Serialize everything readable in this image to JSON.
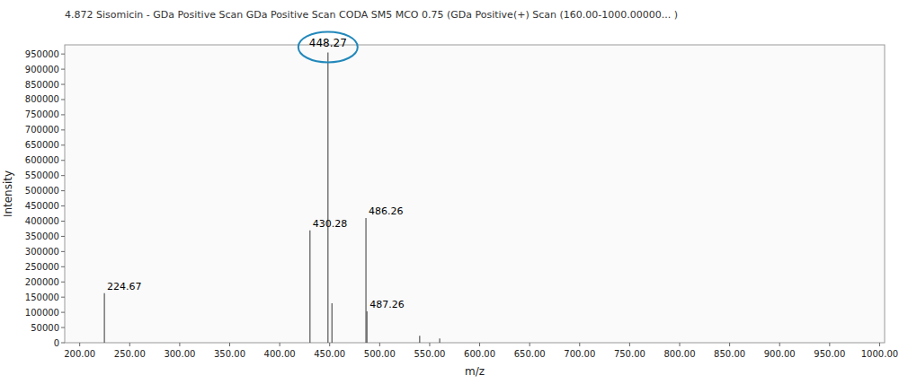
{
  "chart_data": {
    "type": "stem",
    "title": "4.872 Sisomicin - GDa Positive Scan GDa Positive Scan CODA SM5 MCO 0.75 (GDa Positive(+) Scan (160.00-1000.00000...  )",
    "x_label": "m/z",
    "y_label": "Intensity",
    "x": [
      224.67,
      430.28,
      448.27,
      452.27,
      486.26,
      487.26,
      540.0,
      560.0
    ],
    "values": [
      163000,
      370000,
      955000,
      130000,
      410000,
      103000,
      23000,
      14000
    ],
    "color": "#555555",
    "annotations": [
      {
        "text": "224.67",
        "x": 224.67,
        "y": 163000
      },
      {
        "text": "430.28",
        "x": 430.28,
        "y": 370000
      },
      {
        "text": "448.27",
        "x": 448.27,
        "y": 955000,
        "color": "#2288BB"
      },
      {
        "text": "486.26",
        "x": 486.26,
        "y": 410000
      },
      {
        "text": "487.26",
        "x": 487.26,
        "y": 103000
      }
    ],
    "xlim": [
      185,
      1005
    ],
    "ylim": [
      0,
      980000
    ],
    "xticks": [
      {
        "value": 200,
        "label": "200.00"
      },
      {
        "value": 250,
        "label": "250.00"
      },
      {
        "value": 300,
        "label": "300.00"
      },
      {
        "value": 350,
        "label": "350.00"
      },
      {
        "value": 400,
        "label": "400.00"
      },
      {
        "value": 450,
        "label": "450.00"
      },
      {
        "value": 500,
        "label": "500.00"
      },
      {
        "value": 550,
        "label": "550.00"
      },
      {
        "value": 600,
        "label": "600.00"
      },
      {
        "value": 650,
        "label": "650.00"
      },
      {
        "value": 700,
        "label": "700.00"
      },
      {
        "value": 750,
        "label": "750.00"
      },
      {
        "value": 800,
        "label": "800.00"
      },
      {
        "value": 850,
        "label": "850.00"
      },
      {
        "value": 900,
        "label": "900.00"
      },
      {
        "value": 950,
        "label": "950.00"
      },
      {
        "value": 1000,
        "label": "1000.00"
      }
    ],
    "yticks": [
      0,
      50000,
      100000,
      150000,
      200000,
      250000,
      300000,
      350000,
      400000,
      450000,
      500000,
      550000,
      600000,
      650000,
      700000,
      750000,
      800000,
      850000,
      900000,
      950000
    ],
    "grid": false
  }
}
